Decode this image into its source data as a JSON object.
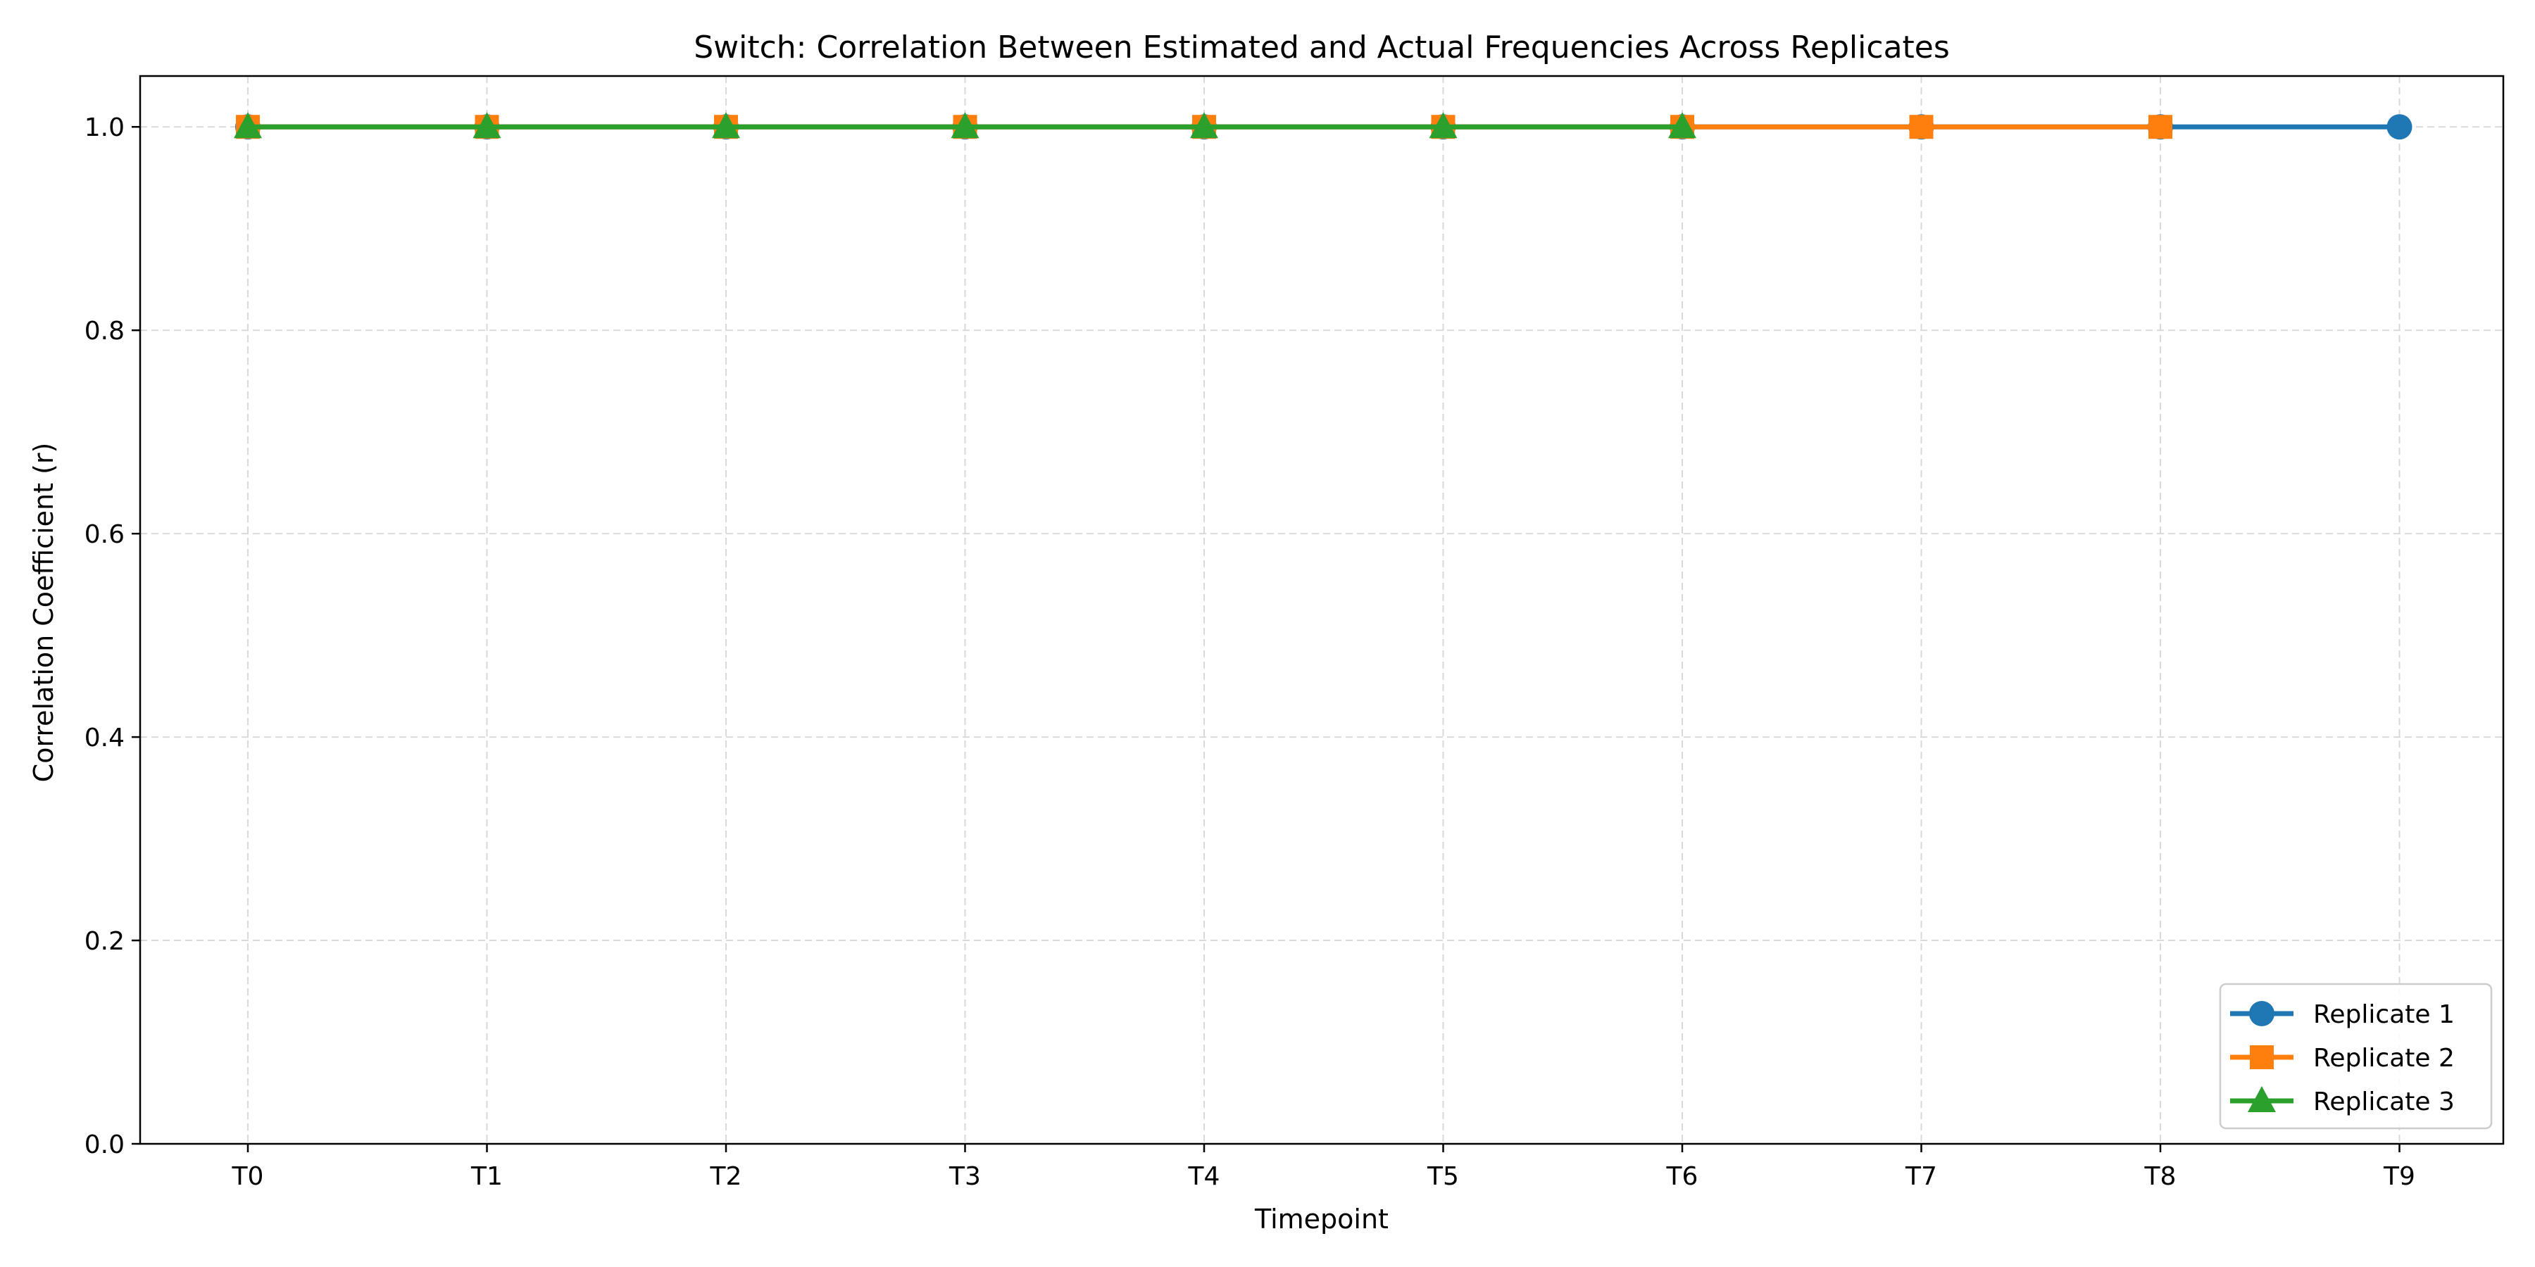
{
  "chart_data": {
    "type": "line",
    "title": "Switch: Correlation Between Estimated and Actual Frequencies Across Replicates",
    "xlabel": "Timepoint",
    "ylabel": "Correlation Coefficient (r)",
    "categories": [
      "T0",
      "T1",
      "T2",
      "T3",
      "T4",
      "T5",
      "T6",
      "T7",
      "T8",
      "T9"
    ],
    "ylim": [
      0,
      1.05
    ],
    "yticks": [
      0.0,
      0.2,
      0.4,
      0.6,
      0.8,
      1.0
    ],
    "ytick_labels": [
      "0.0",
      "0.2",
      "0.4",
      "0.6",
      "0.8",
      "1.0"
    ],
    "grid": true,
    "legend_position": "bottom-right",
    "series": [
      {
        "name": "Replicate 1",
        "color": "#1f77b4",
        "marker": "circle",
        "values": [
          1.0,
          1.0,
          1.0,
          1.0,
          1.0,
          1.0,
          1.0,
          1.0,
          1.0,
          1.0
        ]
      },
      {
        "name": "Replicate 2",
        "color": "#ff7f0e",
        "marker": "square",
        "values": [
          1.0,
          1.0,
          1.0,
          1.0,
          1.0,
          1.0,
          1.0,
          1.0,
          1.0,
          null
        ]
      },
      {
        "name": "Replicate 3",
        "color": "#2ca02c",
        "marker": "triangle",
        "values": [
          1.0,
          1.0,
          1.0,
          1.0,
          1.0,
          1.0,
          1.0,
          null,
          null,
          null
        ]
      }
    ]
  }
}
